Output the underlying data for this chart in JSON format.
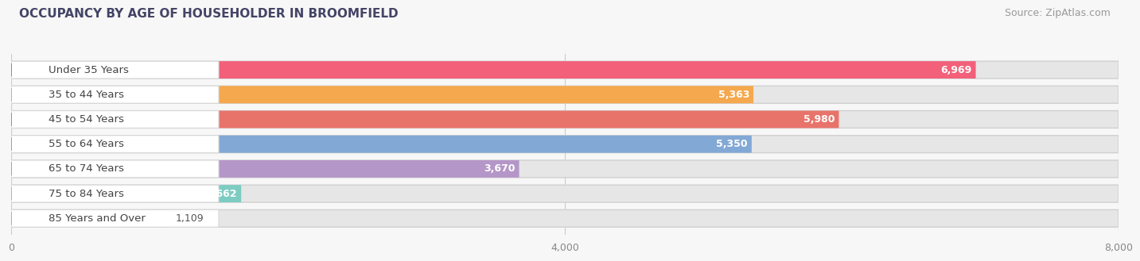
{
  "title": "OCCUPANCY BY AGE OF HOUSEHOLDER IN BROOMFIELD",
  "source": "Source: ZipAtlas.com",
  "categories": [
    "Under 35 Years",
    "35 to 44 Years",
    "45 to 54 Years",
    "55 to 64 Years",
    "65 to 74 Years",
    "75 to 84 Years",
    "85 Years and Over"
  ],
  "values": [
    6969,
    5363,
    5980,
    5350,
    3670,
    1662,
    1109
  ],
  "bar_colors": [
    "#F2607A",
    "#F5A84D",
    "#E8736A",
    "#82A8D5",
    "#B496C8",
    "#7DCCC2",
    "#AAAAD8"
  ],
  "xlim": [
    0,
    8000
  ],
  "xticks": [
    0,
    4000,
    8000
  ],
  "background_color": "#f7f7f7",
  "bar_bg_color": "#e6e6e6",
  "white_label_bg": "#ffffff",
  "title_fontsize": 11,
  "source_fontsize": 9,
  "label_fontsize": 9.5,
  "value_fontsize": 9
}
